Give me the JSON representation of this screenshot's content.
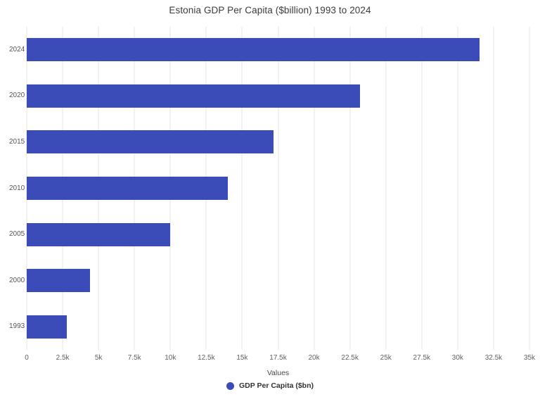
{
  "title": "Estonia GDP Per Capita ($billion) 1993 to 2024",
  "chart_data": {
    "type": "bar",
    "orientation": "horizontal",
    "title": "Estonia GDP Per Capita ($billion) 1993 to 2024",
    "categories": [
      "2024",
      "2020",
      "2015",
      "2010",
      "2005",
      "2000",
      "1993"
    ],
    "values": [
      31500,
      23200,
      17200,
      14000,
      10000,
      4400,
      2800
    ],
    "xlabel": "Values",
    "ylabel": "",
    "xlim": [
      0,
      35000
    ],
    "ticks": [
      0,
      2500,
      5000,
      7500,
      10000,
      12500,
      15000,
      17500,
      20000,
      22500,
      25000,
      27500,
      30000,
      32500,
      35000
    ],
    "tick_labels": [
      "0",
      "2.5k",
      "5k",
      "7.5k",
      "10k",
      "12.5k",
      "15k",
      "17.5k",
      "20k",
      "22.5k",
      "25k",
      "27.5k",
      "30k",
      "32.5k",
      "35k"
    ],
    "grid": true,
    "legend_position": "bottom",
    "legend": [
      {
        "label": "GDP Per Capita ($bn)",
        "color": "#3b4cb8"
      }
    ]
  },
  "colors": {
    "bar": "#3b4cb8",
    "gridline": "#e4e4e4",
    "background": "#ffffff"
  }
}
